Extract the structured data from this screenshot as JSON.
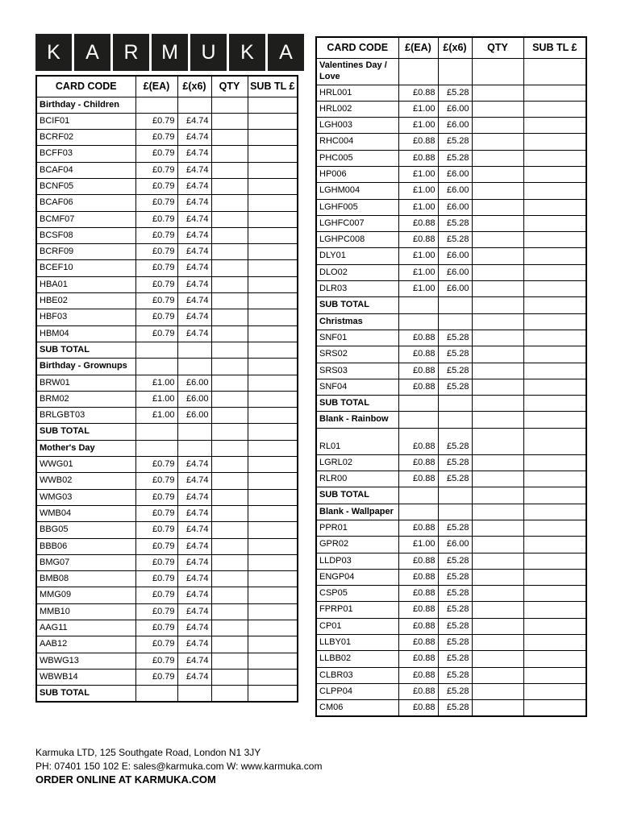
{
  "logo": {
    "letters": [
      "K",
      "A",
      "R",
      "M",
      "U",
      "K",
      "A"
    ]
  },
  "table_headers": [
    "CARD CODE",
    "£(EA)",
    "£(x6)",
    "QTY",
    "SUB TL £"
  ],
  "left_table": {
    "rows": [
      {
        "type": "section",
        "label": "Birthday - Children"
      },
      {
        "type": "item",
        "code": "BCIF01",
        "ea": "£0.79",
        "x6": "£4.74"
      },
      {
        "type": "item",
        "code": "BCRF02",
        "ea": "£0.79",
        "x6": "£4.74"
      },
      {
        "type": "item",
        "code": "BCFF03",
        "ea": "£0.79",
        "x6": "£4.74"
      },
      {
        "type": "item",
        "code": "BCAF04",
        "ea": "£0.79",
        "x6": "£4.74"
      },
      {
        "type": "item",
        "code": "BCNF05",
        "ea": "£0.79",
        "x6": "£4.74"
      },
      {
        "type": "item",
        "code": "BCAF06",
        "ea": "£0.79",
        "x6": "£4.74"
      },
      {
        "type": "item",
        "code": "BCMF07",
        "ea": "£0.79",
        "x6": "£4.74"
      },
      {
        "type": "item",
        "code": "BCSF08",
        "ea": "£0.79",
        "x6": "£4.74"
      },
      {
        "type": "item",
        "code": "BCRF09",
        "ea": "£0.79",
        "x6": "£4.74"
      },
      {
        "type": "item",
        "code": "BCEF10",
        "ea": "£0.79",
        "x6": "£4.74"
      },
      {
        "type": "item",
        "code": "HBA01",
        "ea": "£0.79",
        "x6": "£4.74"
      },
      {
        "type": "item",
        "code": "HBE02",
        "ea": "£0.79",
        "x6": "£4.74"
      },
      {
        "type": "item",
        "code": "HBF03",
        "ea": "£0.79",
        "x6": "£4.74"
      },
      {
        "type": "item",
        "code": "HBM04",
        "ea": "£0.79",
        "x6": "£4.74"
      },
      {
        "type": "subtotal",
        "label": "SUB TOTAL"
      },
      {
        "type": "section",
        "label": "Birthday - Grownups"
      },
      {
        "type": "item",
        "code": "BRW01",
        "ea": "£1.00",
        "x6": "£6.00"
      },
      {
        "type": "item",
        "code": "BRM02",
        "ea": "£1.00",
        "x6": "£6.00"
      },
      {
        "type": "item",
        "code": "BRLGBT03",
        "ea": "£1.00",
        "x6": "£6.00"
      },
      {
        "type": "subtotal",
        "label": "SUB TOTAL"
      },
      {
        "type": "section",
        "label": "Mother's Day"
      },
      {
        "type": "item",
        "code": "WWG01",
        "ea": "£0.79",
        "x6": "£4.74"
      },
      {
        "type": "item",
        "code": "WWB02",
        "ea": "£0.79",
        "x6": "£4.74"
      },
      {
        "type": "item",
        "code": "WMG03",
        "ea": "£0.79",
        "x6": "£4.74"
      },
      {
        "type": "item",
        "code": "WMB04",
        "ea": "£0.79",
        "x6": "£4.74"
      },
      {
        "type": "item",
        "code": "BBG05",
        "ea": "£0.79",
        "x6": "£4.74"
      },
      {
        "type": "item",
        "code": "BBB06",
        "ea": "£0.79",
        "x6": "£4.74"
      },
      {
        "type": "item",
        "code": "BMG07",
        "ea": "£0.79",
        "x6": "£4.74"
      },
      {
        "type": "item",
        "code": "BMB08",
        "ea": "£0.79",
        "x6": "£4.74"
      },
      {
        "type": "item",
        "code": "MMG09",
        "ea": "£0.79",
        "x6": "£4.74"
      },
      {
        "type": "item",
        "code": "MMB10",
        "ea": "£0.79",
        "x6": "£4.74"
      },
      {
        "type": "item",
        "code": "AAG11",
        "ea": "£0.79",
        "x6": "£4.74"
      },
      {
        "type": "item",
        "code": "AAB12",
        "ea": "£0.79",
        "x6": "£4.74"
      },
      {
        "type": "item",
        "code": "WBWG13",
        "ea": "£0.79",
        "x6": "£4.74"
      },
      {
        "type": "item",
        "code": "WBWB14",
        "ea": "£0.79",
        "x6": "£4.74"
      },
      {
        "type": "subtotal",
        "label": "SUB TOTAL"
      }
    ]
  },
  "right_table": {
    "rows": [
      {
        "type": "section",
        "label": "Valentines Day / Love",
        "tall": true
      },
      {
        "type": "item",
        "code": "HRL001",
        "ea": "£0.88",
        "x6": "£5.28"
      },
      {
        "type": "item",
        "code": "HRL002",
        "ea": "£1.00",
        "x6": "£6.00"
      },
      {
        "type": "item",
        "code": "LGH003",
        "ea": "£1.00",
        "x6": "£6.00"
      },
      {
        "type": "item",
        "code": "RHC004",
        "ea": "£0.88",
        "x6": "£5.28"
      },
      {
        "type": "item",
        "code": "PHC005",
        "ea": "£0.88",
        "x6": "£5.28"
      },
      {
        "type": "item",
        "code": "HP006",
        "ea": "£1.00",
        "x6": "£6.00"
      },
      {
        "type": "item",
        "code": "LGHM004",
        "ea": "£1.00",
        "x6": "£6.00"
      },
      {
        "type": "item",
        "code": "LGHF005",
        "ea": "£1.00",
        "x6": "£6.00"
      },
      {
        "type": "item",
        "code": "LGHFC007",
        "ea": "£0.88",
        "x6": "£5.28"
      },
      {
        "type": "item",
        "code": "LGHPC008",
        "ea": "£0.88",
        "x6": "£5.28"
      },
      {
        "type": "item",
        "code": "DLY01",
        "ea": "£1.00",
        "x6": "£6.00"
      },
      {
        "type": "item",
        "code": "DLO02",
        "ea": "£1.00",
        "x6": "£6.00"
      },
      {
        "type": "item",
        "code": "DLR03",
        "ea": "£1.00",
        "x6": "£6.00"
      },
      {
        "type": "subtotal",
        "label": "SUB TOTAL"
      },
      {
        "type": "section",
        "label": "Christmas"
      },
      {
        "type": "item",
        "code": "SNF01",
        "ea": "£0.88",
        "x6": "£5.28"
      },
      {
        "type": "item",
        "code": "SRS02",
        "ea": "£0.88",
        "x6": "£5.28"
      },
      {
        "type": "item",
        "code": "SRS03",
        "ea": "£0.88",
        "x6": "£5.28"
      },
      {
        "type": "item",
        "code": "SNF04",
        "ea": "£0.88",
        "x6": "£5.28"
      },
      {
        "type": "subtotal",
        "label": "SUB TOTAL"
      },
      {
        "type": "section",
        "label": "Blank - Rainbow"
      },
      {
        "type": "item",
        "code": "RL01",
        "ea": "£0.88",
        "x6": "£5.28",
        "tall": true
      },
      {
        "type": "item",
        "code": "LGRL02",
        "ea": "£0.88",
        "x6": "£5.28"
      },
      {
        "type": "item",
        "code": "RLR00",
        "ea": "£0.88",
        "x6": "£5.28"
      },
      {
        "type": "subtotal",
        "label": "SUB TOTAL"
      },
      {
        "type": "section",
        "label": "Blank - Wallpaper"
      },
      {
        "type": "item",
        "code": "PPR01",
        "ea": "£0.88",
        "x6": "£5.28"
      },
      {
        "type": "item",
        "code": "GPR02",
        "ea": "£1.00",
        "x6": "£6.00"
      },
      {
        "type": "item",
        "code": "LLDP03",
        "ea": "£0.88",
        "x6": "£5.28"
      },
      {
        "type": "item",
        "code": "ENGP04",
        "ea": "£0.88",
        "x6": "£5.28"
      },
      {
        "type": "item",
        "code": "CSP05",
        "ea": "£0.88",
        "x6": "£5.28"
      },
      {
        "type": "item",
        "code": "FPRP01",
        "ea": "£0.88",
        "x6": "£5.28"
      },
      {
        "type": "item",
        "code": "CP01",
        "ea": "£0.88",
        "x6": "£5.28"
      },
      {
        "type": "item",
        "code": "LLBY01",
        "ea": "£0.88",
        "x6": "£5.28"
      },
      {
        "type": "item",
        "code": "LLBB02",
        "ea": "£0.88",
        "x6": "£5.28"
      },
      {
        "type": "item",
        "code": "CLBR03",
        "ea": "£0.88",
        "x6": "£5.28"
      },
      {
        "type": "item",
        "code": "CLPP04",
        "ea": "£0.88",
        "x6": "£5.28"
      },
      {
        "type": "item",
        "code": "CM06",
        "ea": "£0.88",
        "x6": "£5.28"
      }
    ]
  },
  "layout": {
    "left_col_widths": [
      123,
      52,
      42,
      45,
      62
    ],
    "right_col_widths": [
      102,
      49,
      42,
      64,
      78
    ]
  },
  "colors": {
    "tile_bg": "#1e1e1c",
    "text": "#000000",
    "page_bg": "#ffffff"
  },
  "footer": {
    "address": "Karmuka LTD, 125 Southgate Road, London N1 3JY",
    "contact": "PH: 07401 150 102 E: sales@karmuka.com W: www.karmuka.com",
    "order_line": "ORDER ONLINE AT KARMUKA.COM"
  }
}
